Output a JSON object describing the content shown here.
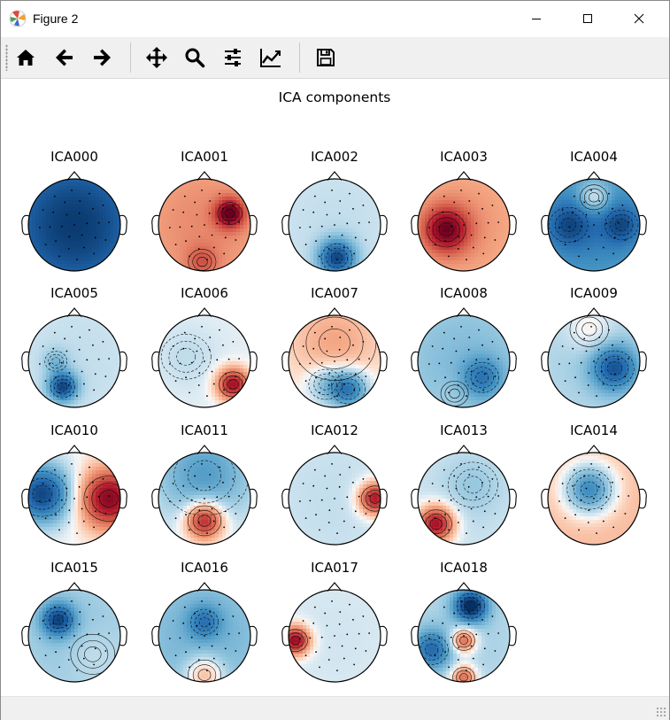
{
  "window": {
    "title": "Figure 2",
    "controls": [
      "minimize",
      "maximize",
      "close"
    ]
  },
  "toolbar": {
    "tools": [
      {
        "name": "home",
        "icon": "home-icon"
      },
      {
        "name": "back",
        "icon": "arrow-left-icon"
      },
      {
        "name": "forward",
        "icon": "arrow-right-icon"
      },
      {
        "name": "pan",
        "icon": "move-icon"
      },
      {
        "name": "zoom",
        "icon": "magnifier-icon"
      },
      {
        "name": "configure-subplots",
        "icon": "sliders-icon"
      },
      {
        "name": "edit-axis",
        "icon": "line-chart-icon"
      },
      {
        "name": "save",
        "icon": "floppy-disk-icon"
      }
    ]
  },
  "figure": {
    "suptitle": "ICA components",
    "colormap": {
      "negative": "#053061",
      "neutral": "#f7f7f7",
      "positive": "#67001f"
    },
    "components": [
      {
        "label": "ICA000",
        "blobs": [
          [
            0,
            0,
            1.6,
            -0.95
          ]
        ]
      },
      {
        "label": "ICA001",
        "blobs": [
          [
            0,
            0,
            1.5,
            0.35
          ],
          [
            0.55,
            -0.25,
            0.22,
            0.75
          ],
          [
            -0.05,
            0.8,
            0.25,
            0.25
          ]
        ]
      },
      {
        "label": "ICA002",
        "blobs": [
          [
            0,
            0,
            1.5,
            -0.12
          ],
          [
            0.05,
            0.72,
            0.28,
            -0.8
          ]
        ]
      },
      {
        "label": "ICA003",
        "blobs": [
          [
            0,
            0,
            1.5,
            0.3
          ],
          [
            -0.38,
            0.1,
            0.35,
            0.7
          ]
        ]
      },
      {
        "label": "ICA004",
        "blobs": [
          [
            0,
            0,
            1.5,
            -0.6
          ],
          [
            -0.55,
            0.0,
            0.35,
            -0.35
          ],
          [
            0.6,
            0.0,
            0.3,
            -0.35
          ],
          [
            0.0,
            -0.6,
            0.25,
            0.45
          ]
        ]
      },
      {
        "label": "ICA005",
        "blobs": [
          [
            0,
            0,
            1.5,
            -0.12
          ],
          [
            -0.25,
            0.55,
            0.22,
            -0.8
          ],
          [
            -0.4,
            0.0,
            0.2,
            -0.2
          ]
        ]
      },
      {
        "label": "ICA006",
        "blobs": [
          [
            0,
            0,
            1.5,
            -0.05
          ],
          [
            0.62,
            0.5,
            0.25,
            0.85
          ],
          [
            -0.4,
            -0.1,
            0.45,
            -0.08
          ]
        ]
      },
      {
        "label": "ICA007",
        "blobs": [
          [
            0,
            -0.4,
            0.75,
            0.25
          ],
          [
            0.3,
            0.6,
            0.3,
            -0.7
          ],
          [
            -0.2,
            0.5,
            0.3,
            -0.3
          ]
        ]
      },
      {
        "label": "ICA008",
        "blobs": [
          [
            0,
            0,
            1.5,
            -0.3
          ],
          [
            0.4,
            0.35,
            0.3,
            -0.4
          ],
          [
            -0.2,
            0.7,
            0.25,
            0.05
          ]
        ]
      },
      {
        "label": "ICA009",
        "blobs": [
          [
            0,
            0,
            1.5,
            -0.2
          ],
          [
            0.45,
            0.15,
            0.35,
            -0.65
          ],
          [
            -0.1,
            -0.7,
            0.35,
            0.2
          ]
        ]
      },
      {
        "label": "ICA010",
        "blobs": [
          [
            -0.7,
            -0.1,
            0.45,
            -0.9
          ],
          [
            0.75,
            0.0,
            0.45,
            0.9
          ]
        ]
      },
      {
        "label": "ICA011",
        "blobs": [
          [
            0,
            -0.5,
            0.8,
            -0.45
          ],
          [
            0.0,
            0.48,
            0.3,
            0.85
          ]
        ]
      },
      {
        "label": "ICA012",
        "blobs": [
          [
            0,
            0,
            1.5,
            -0.12
          ],
          [
            0.88,
            0.0,
            0.25,
            0.85
          ]
        ]
      },
      {
        "label": "ICA013",
        "blobs": [
          [
            0,
            0,
            1.5,
            -0.12
          ],
          [
            -0.6,
            0.55,
            0.28,
            0.9
          ],
          [
            0.2,
            -0.3,
            0.45,
            -0.12
          ]
        ]
      },
      {
        "label": "ICA014",
        "blobs": [
          [
            0,
            0,
            1.5,
            0.22
          ],
          [
            -0.1,
            -0.2,
            0.4,
            -0.75
          ]
        ]
      },
      {
        "label": "ICA015",
        "blobs": [
          [
            0,
            0,
            1.5,
            -0.25
          ],
          [
            -0.35,
            -0.35,
            0.25,
            -0.7
          ],
          [
            0.4,
            0.4,
            0.4,
            0.1
          ]
        ]
      },
      {
        "label": "ICA016",
        "blobs": [
          [
            0,
            0,
            1.5,
            -0.35
          ],
          [
            0.0,
            0.85,
            0.3,
            0.45
          ],
          [
            0.0,
            -0.3,
            0.25,
            -0.35
          ]
        ]
      },
      {
        "label": "ICA017",
        "blobs": [
          [
            0,
            0,
            1.5,
            -0.08
          ],
          [
            -0.85,
            0.1,
            0.22,
            0.9
          ]
        ]
      },
      {
        "label": "ICA018",
        "blobs": [
          [
            0,
            0,
            1.5,
            -0.2
          ],
          [
            0.0,
            0.1,
            0.2,
            0.65
          ],
          [
            0.15,
            -0.65,
            0.25,
            -0.9
          ],
          [
            -0.7,
            0.3,
            0.3,
            -0.55
          ],
          [
            0.0,
            0.9,
            0.2,
            0.6
          ]
        ]
      }
    ]
  }
}
